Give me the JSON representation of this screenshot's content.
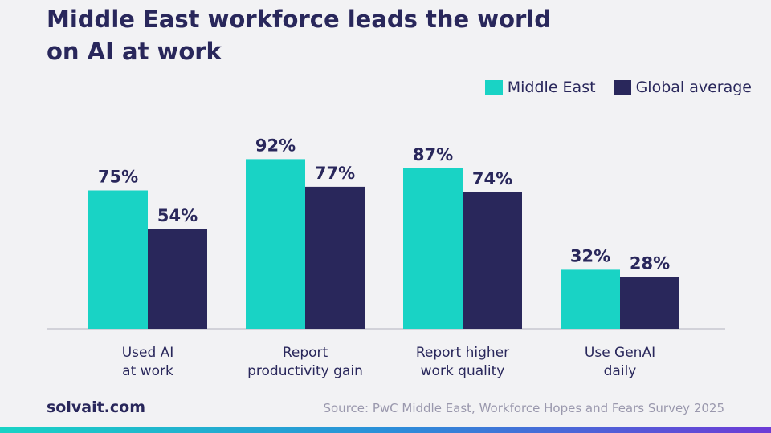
{
  "title_lines": [
    "Middle East workforce leads the world",
    "on AI at work"
  ],
  "legend": [
    {
      "label": "Middle East",
      "color": "#19d3c5"
    },
    {
      "label": "Global average",
      "color": "#29275b"
    }
  ],
  "chart_data": {
    "type": "bar",
    "title": "Middle East workforce leads the world on AI at work",
    "categories": [
      [
        "Used AI",
        "at work"
      ],
      [
        "Report",
        "productivity gain"
      ],
      [
        "Report higher",
        "work quality"
      ],
      [
        "Use GenAI",
        "daily"
      ]
    ],
    "series": [
      {
        "name": "Middle East",
        "values": [
          75,
          92,
          87,
          32
        ],
        "labels": [
          "75%",
          "92%",
          "87%",
          "32%"
        ]
      },
      {
        "name": "Global average",
        "values": [
          54,
          77,
          74,
          28
        ],
        "labels": [
          "54%",
          "77%",
          "74%",
          "28%"
        ]
      }
    ],
    "xlabel": "",
    "ylabel": "",
    "ylim": [
      0,
      100
    ],
    "grid": false,
    "legend_position": "top-right",
    "colors": [
      "#19d3c5",
      "#29275b"
    ]
  },
  "footer": {
    "brand": "solvait.com",
    "source": "Source: PwC Middle East, Workforce Hopes and Fears Survey 2025"
  }
}
